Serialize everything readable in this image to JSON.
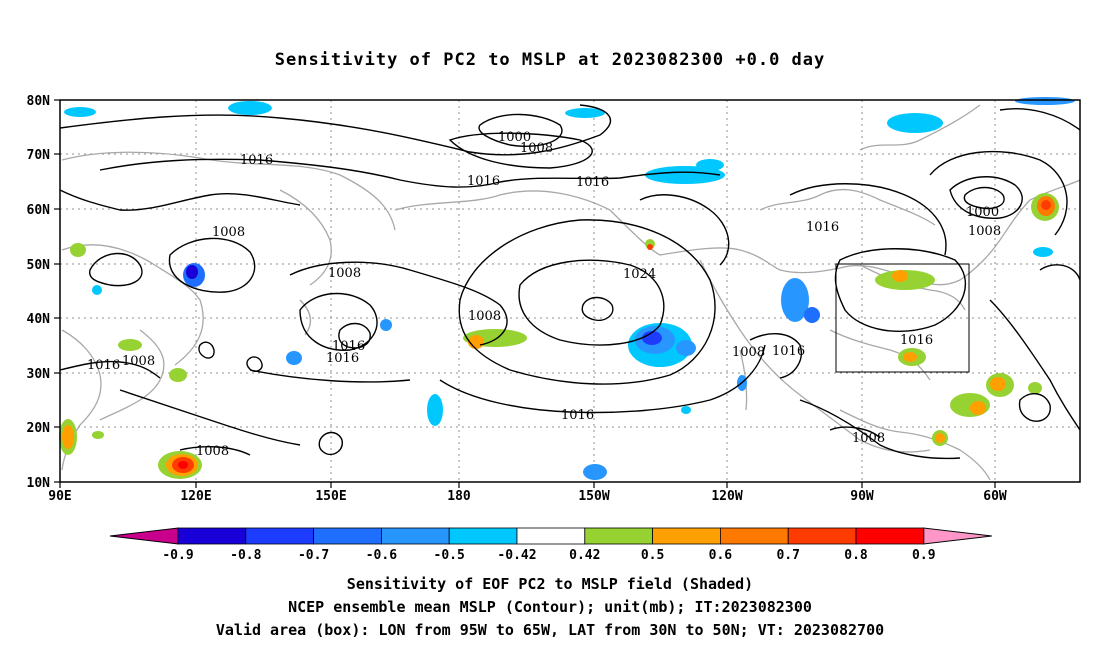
{
  "title": "Sensitivity of PC2 to MSLP at 2023082300 +0.0 day",
  "map": {
    "lon_labels": [
      "90E",
      "120E",
      "150E",
      "180",
      "150W",
      "120W",
      "90W",
      "60W"
    ],
    "lat_labels": [
      "80N",
      "70N",
      "60N",
      "50N",
      "40N",
      "30N",
      "20N",
      "10N"
    ],
    "contour_labels": [
      "1000",
      "1008",
      "1016",
      "1016",
      "1008",
      "1008",
      "1016",
      "1016",
      "1008",
      "1024",
      "1016",
      "1016",
      "1000",
      "1008",
      "1016",
      "1008",
      "1016",
      "1016",
      "1008",
      "1008",
      "1008",
      "1016",
      "1008"
    ],
    "valid_box": {
      "lon_from": "95W",
      "lon_to": "65W",
      "lat_from": "30N",
      "lat_to": "50N"
    },
    "colors": {
      "contour": "#000000",
      "coastline": "#a0a0a0",
      "grid": "#909090"
    }
  },
  "colorbar": {
    "labels": [
      "-0.9",
      "-0.8",
      "-0.7",
      "-0.6",
      "-0.5",
      "-0.42",
      "0.42",
      "0.5",
      "0.6",
      "0.7",
      "0.8",
      "0.9"
    ],
    "colors": [
      "#1a00d8",
      "#1e3cff",
      "#1e6eff",
      "#2896ff",
      "#00c8ff",
      "#ffffff",
      "#96d232",
      "#ffa000",
      "#ff7800",
      "#ff3c00",
      "#ff0000"
    ],
    "under_color": "#c8008c",
    "over_color": "#ff96c8"
  },
  "captions": {
    "line1": "Sensitivity of EOF PC2 to MSLP field (Shaded)",
    "line2": "NCEP ensemble mean MSLP (Contour); unit(mb); IT:2023082300",
    "line3": "Valid area (box): LON from 95W to 65W, LAT from 30N to 50N; VT: 2023082700"
  }
}
